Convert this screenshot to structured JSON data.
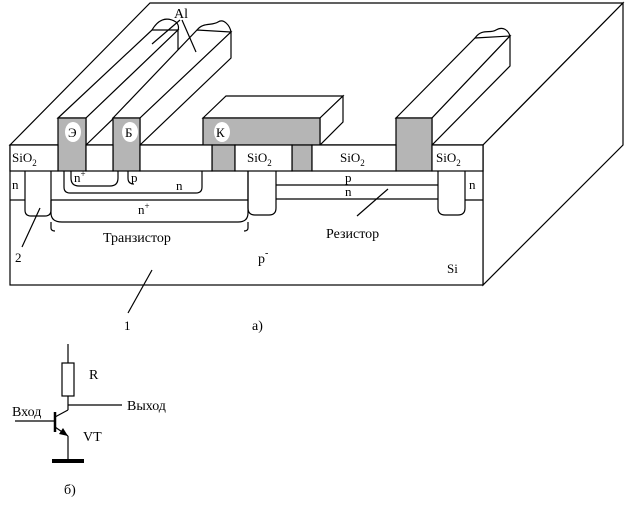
{
  "figure_a": {
    "al": "Al",
    "contacts": {
      "emitter": "Э",
      "base": "Б",
      "collector": "К"
    },
    "sio2": {
      "base": "SiO",
      "sub": "2"
    },
    "regions": {
      "n_left": "n",
      "n_right": "n",
      "n_plus": "n",
      "plus": "+",
      "p": "p",
      "n": "n",
      "n_plus_buried": "n",
      "p_res": "p",
      "n_res": "n",
      "p_sub": "p",
      "minus": "-",
      "si": "Si"
    },
    "callouts": {
      "transistor": "Транзистор",
      "resistor": "Резистор",
      "two": "2",
      "one": "1"
    },
    "caption": "а)"
  },
  "figure_b": {
    "R": "R",
    "input": "Вход",
    "output": "Выход",
    "VT": "VT",
    "caption": "б)"
  }
}
